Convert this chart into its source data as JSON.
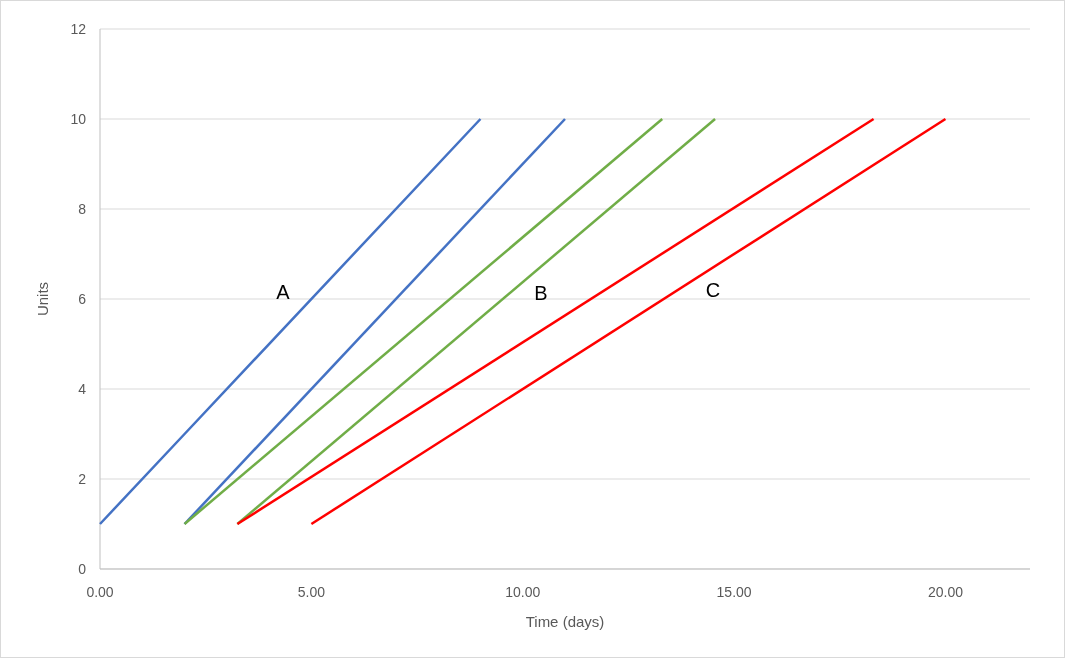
{
  "chart_data": {
    "type": "line",
    "xlabel": "Time (days)",
    "ylabel": "Units",
    "xlim": [
      0,
      22
    ],
    "xticks": [
      {
        "value": 0,
        "label": "0.00"
      },
      {
        "value": 5,
        "label": "5.00"
      },
      {
        "value": 10,
        "label": "10.00"
      },
      {
        "value": 15,
        "label": "15.00"
      },
      {
        "value": 20,
        "label": "20.00"
      }
    ],
    "ylim": [
      0,
      12
    ],
    "yticks": [
      0,
      2,
      4,
      6,
      8,
      10,
      12
    ],
    "grid": "y",
    "marker": "none",
    "line_style": "solid",
    "series": [
      {
        "color": "#4472c4",
        "x": [
          0,
          2,
          9
        ],
        "values": [
          1,
          3,
          10
        ]
      },
      {
        "color": "#4472c4",
        "x": [
          2,
          11
        ],
        "values": [
          1,
          10
        ]
      },
      {
        "color": "#70ad47",
        "x": [
          2,
          13.3
        ],
        "values": [
          1,
          10
        ]
      },
      {
        "color": "#70ad47",
        "x": [
          3.25,
          14.55
        ],
        "values": [
          1,
          10
        ]
      },
      {
        "color": "#ff0000",
        "x": [
          3.25,
          18.3
        ],
        "values": [
          1,
          10
        ]
      },
      {
        "color": "#ff0000",
        "x": [
          5,
          20
        ],
        "values": [
          1,
          10
        ]
      }
    ],
    "annotations": [
      "A",
      "B",
      "C"
    ]
  }
}
